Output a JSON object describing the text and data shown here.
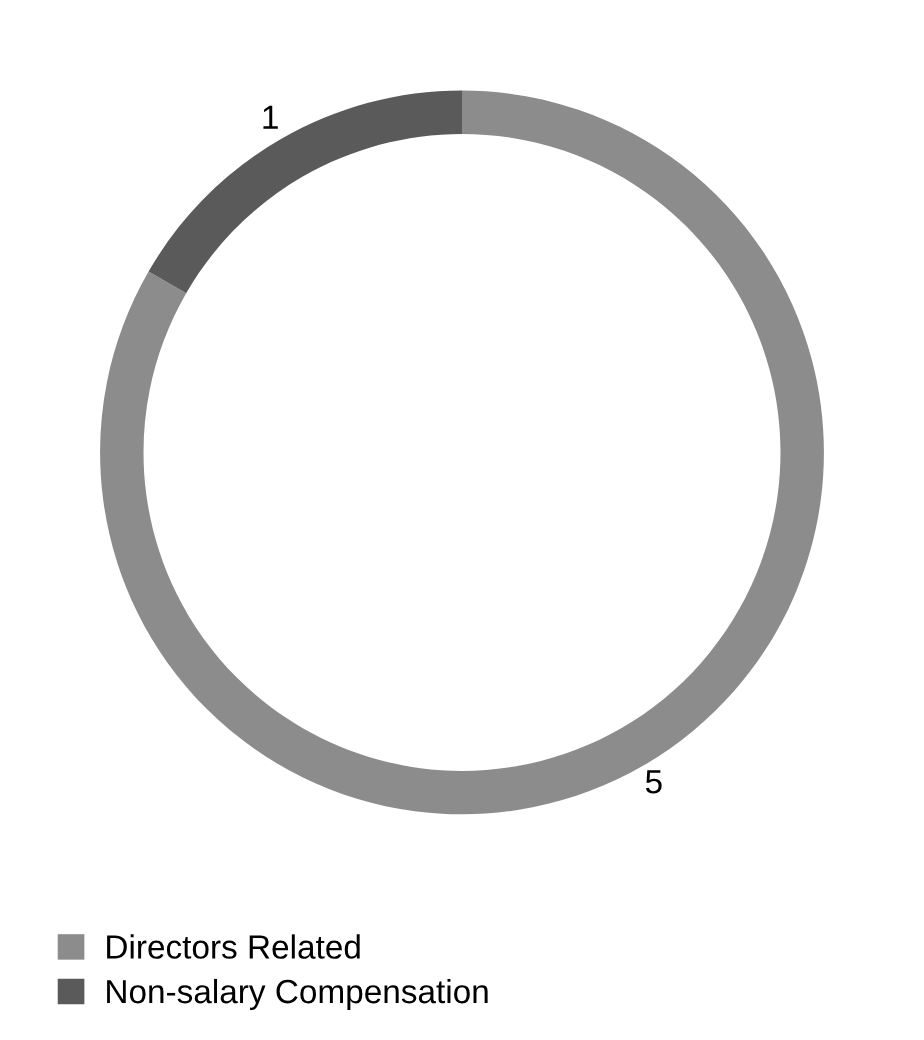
{
  "chart_data": {
    "type": "donut",
    "categories": [
      "Directors Related",
      "Non-salary Compensation"
    ],
    "values": [
      5,
      1
    ],
    "colors": [
      "#8c8c8c",
      "#5a5a5a"
    ],
    "data_labels": true,
    "legend": "bottom left"
  }
}
